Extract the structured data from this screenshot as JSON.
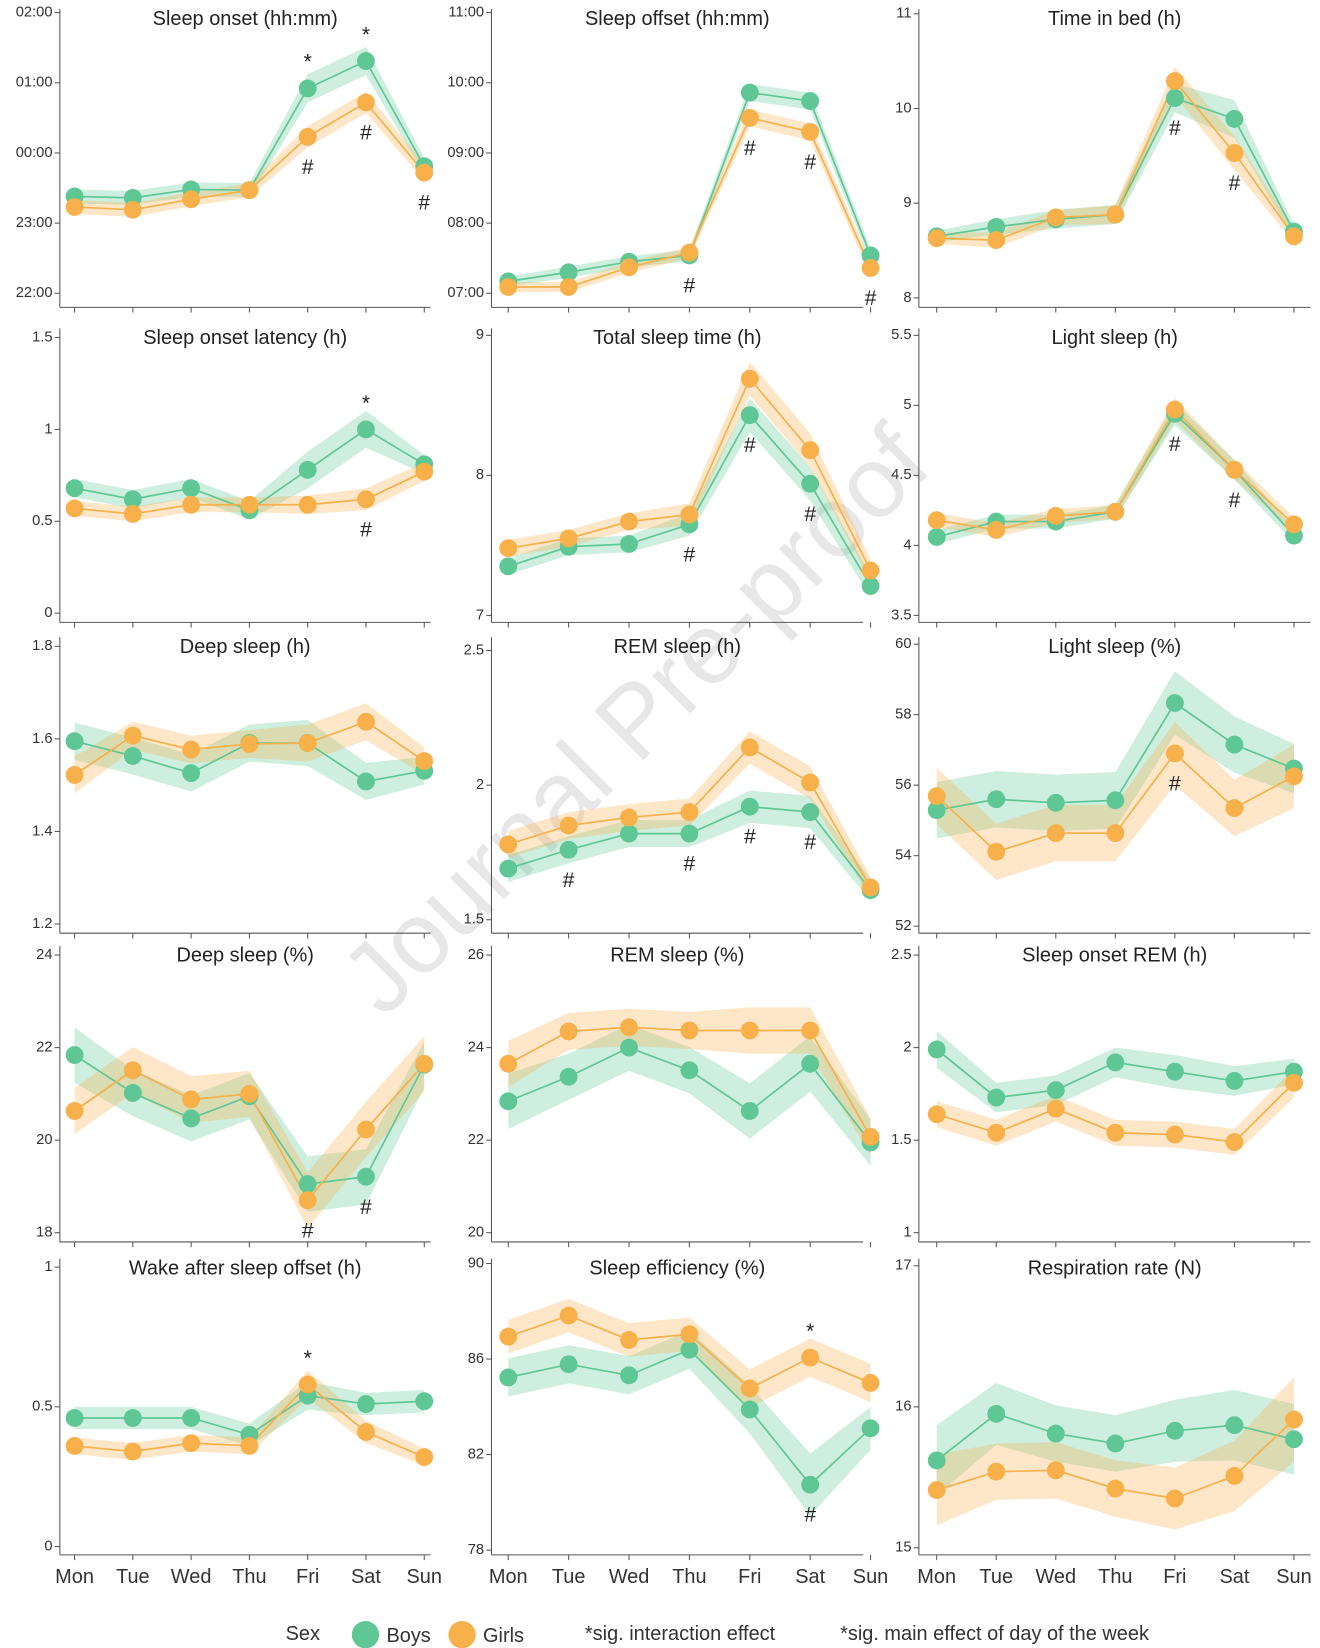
{
  "categories": [
    "Mon",
    "Tue",
    "Wed",
    "Thu",
    "Fri",
    "Sat",
    "Sun"
  ],
  "watermark": "Journal Pre-proof",
  "legend": {
    "title": "Sex",
    "notes": [
      "*sig. interaction effect",
      "*sig. main effect of day of the week"
    ]
  },
  "chart_data": [
    {
      "type": "line",
      "title": "Sleep onset (hh:mm)",
      "ylim": [
        21.8,
        26.05
      ],
      "yticks": [
        {
          "value": 22,
          "label": "22:00"
        },
        {
          "value": 23,
          "label": "23:00"
        },
        {
          "value": 24,
          "label": "00:00"
        },
        {
          "value": 25,
          "label": "01:00"
        },
        {
          "value": 26,
          "label": "02:00"
        }
      ],
      "series": [
        {
          "name": "Boys",
          "color": "#5ec795",
          "values": [
            23.38,
            23.36,
            23.48,
            23.47,
            24.92,
            25.31,
            23.81
          ],
          "errors": [
            0.1,
            0.1,
            0.1,
            0.1,
            0.2,
            0.2,
            0.12
          ]
        },
        {
          "name": "Girls",
          "color": "#f7b04a",
          "values": [
            23.23,
            23.19,
            23.34,
            23.47,
            24.23,
            24.72,
            23.72
          ],
          "errors": [
            0.1,
            0.1,
            0.1,
            0.1,
            0.15,
            0.15,
            0.12
          ]
        }
      ],
      "annotations": [
        {
          "text": "*",
          "category": "Fri"
        },
        {
          "text": "*",
          "category": "Sat"
        },
        {
          "text": "#",
          "category": "Fri"
        },
        {
          "text": "#",
          "category": "Sat"
        },
        {
          "text": "#",
          "category": "Sun"
        }
      ]
    },
    {
      "type": "line",
      "title": "Sleep offset (hh:mm)",
      "ylim": [
        6.8,
        11.05
      ],
      "yticks": [
        {
          "value": 7,
          "label": "07:00"
        },
        {
          "value": 8,
          "label": "08:00"
        },
        {
          "value": 9,
          "label": "09:00"
        },
        {
          "value": 10,
          "label": "10:00"
        },
        {
          "value": 11,
          "label": "11:00"
        }
      ],
      "series": [
        {
          "name": "Boys",
          "color": "#5ec795",
          "values": [
            7.17,
            7.3,
            7.45,
            7.54,
            9.86,
            9.74,
            7.54
          ],
          "errors": [
            0.07,
            0.08,
            0.08,
            0.08,
            0.12,
            0.12,
            0.1
          ]
        },
        {
          "name": "Girls",
          "color": "#f7b04a",
          "values": [
            7.09,
            7.09,
            7.37,
            7.58,
            9.5,
            9.3,
            7.36
          ],
          "errors": [
            0.07,
            0.07,
            0.08,
            0.08,
            0.12,
            0.12,
            0.1
          ]
        }
      ],
      "annotations": [
        {
          "text": "#",
          "category": "Thu"
        },
        {
          "text": "#",
          "category": "Fri"
        },
        {
          "text": "#",
          "category": "Sat"
        },
        {
          "text": "#",
          "category": "Sun"
        }
      ]
    },
    {
      "type": "line",
      "title": "Time in bed (h)",
      "ylim": [
        7.9,
        11.05
      ],
      "yticks": [
        8,
        9,
        10,
        11
      ],
      "series": [
        {
          "name": "Boys",
          "color": "#5ec795",
          "values": [
            8.65,
            8.75,
            8.83,
            8.88,
            10.11,
            9.89,
            8.7
          ],
          "errors": [
            0.06,
            0.08,
            0.1,
            0.1,
            0.15,
            0.2,
            0.07
          ]
        },
        {
          "name": "Girls",
          "color": "#f7b04a",
          "values": [
            8.63,
            8.61,
            8.85,
            8.88,
            10.29,
            9.53,
            8.65
          ],
          "errors": [
            0.06,
            0.08,
            0.08,
            0.1,
            0.15,
            0.18,
            0.07
          ]
        }
      ],
      "annotations": [
        {
          "text": "#",
          "category": "Fri"
        },
        {
          "text": "#",
          "category": "Sat"
        }
      ]
    },
    {
      "type": "line",
      "title": "Sleep onset latency (h)",
      "ylim": [
        -0.05,
        1.55
      ],
      "yticks": [
        0,
        0.5,
        1,
        1.5
      ],
      "series": [
        {
          "name": "Boys",
          "color": "#5ec795",
          "values": [
            0.68,
            0.62,
            0.68,
            0.56,
            0.78,
            1.0,
            0.81
          ],
          "errors": [
            0.05,
            0.05,
            0.05,
            0.05,
            0.1,
            0.1,
            0.05
          ]
        },
        {
          "name": "Girls",
          "color": "#f7b04a",
          "values": [
            0.57,
            0.54,
            0.59,
            0.59,
            0.59,
            0.62,
            0.77
          ],
          "errors": [
            0.04,
            0.04,
            0.04,
            0.04,
            0.05,
            0.06,
            0.05
          ]
        }
      ],
      "annotations": [
        {
          "text": "*",
          "category": "Sat"
        },
        {
          "text": "#",
          "category": "Sat"
        }
      ]
    },
    {
      "type": "line",
      "title": "Total sleep time (h)",
      "ylim": [
        6.95,
        9.05
      ],
      "yticks": [
        7,
        8,
        9
      ],
      "series": [
        {
          "name": "Boys",
          "color": "#5ec795",
          "values": [
            7.35,
            7.49,
            7.51,
            7.65,
            8.43,
            7.94,
            7.21
          ],
          "errors": [
            0.06,
            0.06,
            0.06,
            0.08,
            0.12,
            0.12,
            0.08
          ]
        },
        {
          "name": "Girls",
          "color": "#f7b04a",
          "values": [
            7.48,
            7.55,
            7.67,
            7.72,
            8.69,
            8.18,
            7.32
          ],
          "errors": [
            0.06,
            0.06,
            0.06,
            0.08,
            0.12,
            0.12,
            0.08
          ]
        }
      ],
      "annotations": [
        {
          "text": "#",
          "category": "Thu"
        },
        {
          "text": "#",
          "category": "Fri"
        },
        {
          "text": "#",
          "category": "Sat"
        }
      ]
    },
    {
      "type": "line",
      "title": "Light sleep (h)",
      "ylim": [
        3.45,
        5.55
      ],
      "yticks": [
        3.5,
        4,
        4.5,
        5,
        5.5
      ],
      "series": [
        {
          "name": "Boys",
          "color": "#5ec795",
          "values": [
            4.06,
            4.17,
            4.17,
            4.24,
            4.94,
            4.54,
            4.07
          ],
          "errors": [
            0.05,
            0.05,
            0.05,
            0.05,
            0.08,
            0.07,
            0.05
          ]
        },
        {
          "name": "Girls",
          "color": "#f7b04a",
          "values": [
            4.18,
            4.11,
            4.21,
            4.24,
            4.97,
            4.54,
            4.15
          ],
          "errors": [
            0.05,
            0.05,
            0.05,
            0.05,
            0.08,
            0.07,
            0.05
          ]
        }
      ],
      "annotations": [
        {
          "text": "#",
          "category": "Fri"
        },
        {
          "text": "#",
          "category": "Sat"
        }
      ]
    },
    {
      "type": "line",
      "title": "Deep sleep (h)",
      "ylim": [
        1.18,
        1.82
      ],
      "yticks": [
        1.2,
        1.4,
        1.6,
        1.8
      ],
      "series": [
        {
          "name": "Boys",
          "color": "#5ec795",
          "values": [
            1.595,
            1.563,
            1.526,
            1.591,
            1.591,
            1.508,
            1.531
          ],
          "errors": [
            0.04,
            0.04,
            0.04,
            0.04,
            0.05,
            0.04,
            0.03
          ]
        },
        {
          "name": "Girls",
          "color": "#f7b04a",
          "values": [
            1.522,
            1.607,
            1.577,
            1.589,
            1.591,
            1.637,
            1.552
          ],
          "errors": [
            0.04,
            0.03,
            0.03,
            0.03,
            0.04,
            0.04,
            0.03
          ]
        }
      ],
      "annotations": []
    },
    {
      "type": "line",
      "title": "REM sleep (h)",
      "ylim": [
        1.45,
        2.55
      ],
      "yticks": [
        1.5,
        2,
        2.5
      ],
      "series": [
        {
          "name": "Boys",
          "color": "#5ec795",
          "values": [
            1.69,
            1.76,
            1.82,
            1.82,
            1.92,
            1.9,
            1.61
          ],
          "errors": [
            0.05,
            0.05,
            0.05,
            0.05,
            0.06,
            0.06,
            0.04
          ]
        },
        {
          "name": "Girls",
          "color": "#f7b04a",
          "values": [
            1.78,
            1.85,
            1.88,
            1.9,
            2.14,
            2.01,
            1.62
          ],
          "errors": [
            0.05,
            0.05,
            0.05,
            0.05,
            0.06,
            0.06,
            0.04
          ]
        }
      ],
      "annotations": [
        {
          "text": "#",
          "category": "Tue"
        },
        {
          "text": "#",
          "category": "Thu"
        },
        {
          "text": "#",
          "category": "Fri"
        },
        {
          "text": "#",
          "category": "Sat"
        }
      ]
    },
    {
      "type": "line",
      "title": "Light sleep (%)",
      "ylim": [
        51.8,
        60.2
      ],
      "yticks": [
        52,
        54,
        56,
        58,
        60
      ],
      "series": [
        {
          "name": "Boys",
          "color": "#5ec795",
          "values": [
            55.29,
            55.6,
            55.5,
            55.57,
            58.33,
            57.15,
            56.47
          ],
          "errors": [
            0.8,
            0.8,
            0.8,
            0.8,
            0.9,
            0.8,
            0.7
          ]
        },
        {
          "name": "Girls",
          "color": "#f7b04a",
          "values": [
            55.69,
            54.11,
            54.64,
            54.64,
            56.9,
            55.35,
            56.25
          ],
          "errors": [
            0.8,
            0.8,
            0.8,
            0.8,
            0.9,
            0.8,
            0.9
          ]
        }
      ],
      "annotations": [
        {
          "text": "#",
          "category": "Fri"
        }
      ]
    },
    {
      "type": "line",
      "title": "Deep sleep (%)",
      "ylim": [
        17.8,
        24.2
      ],
      "yticks": [
        18,
        20,
        22,
        24
      ],
      "series": [
        {
          "name": "Boys",
          "color": "#5ec795",
          "values": [
            21.84,
            21.02,
            20.47,
            20.95,
            19.05,
            19.21,
            21.63
          ],
          "errors": [
            0.6,
            0.5,
            0.5,
            0.5,
            0.6,
            0.6,
            0.5
          ]
        },
        {
          "name": "Girls",
          "color": "#f7b04a",
          "values": [
            20.63,
            21.51,
            20.88,
            21.0,
            18.7,
            20.23,
            21.65
          ],
          "errors": [
            0.5,
            0.5,
            0.5,
            0.5,
            0.6,
            0.6,
            0.6
          ]
        }
      ],
      "annotations": [
        {
          "text": "#",
          "category": "Fri"
        },
        {
          "text": "#",
          "category": "Sat"
        }
      ]
    },
    {
      "type": "line",
      "title": "REM sleep (%)",
      "ylim": [
        19.8,
        26.2
      ],
      "yticks": [
        20,
        22,
        24,
        26
      ],
      "series": [
        {
          "name": "Boys",
          "color": "#5ec795",
          "values": [
            22.84,
            23.37,
            24.0,
            23.51,
            22.63,
            23.65,
            21.95
          ],
          "errors": [
            0.6,
            0.5,
            0.5,
            0.5,
            0.6,
            0.6,
            0.5
          ]
        },
        {
          "name": "Girls",
          "color": "#f7b04a",
          "values": [
            23.65,
            24.35,
            24.44,
            24.37,
            24.37,
            24.37,
            22.07
          ],
          "errors": [
            0.5,
            0.4,
            0.4,
            0.4,
            0.5,
            0.5,
            0.4
          ]
        }
      ],
      "annotations": []
    },
    {
      "type": "line",
      "title": "Sleep onset REM (h)",
      "ylim": [
        0.95,
        2.55
      ],
      "yticks": [
        1,
        1.5,
        2,
        2.5
      ],
      "series": [
        {
          "name": "Boys",
          "color": "#5ec795",
          "values": [
            1.99,
            1.73,
            1.77,
            1.92,
            1.87,
            1.82,
            1.87
          ],
          "errors": [
            0.1,
            0.08,
            0.08,
            0.08,
            0.09,
            0.08,
            0.07
          ]
        },
        {
          "name": "Girls",
          "color": "#f7b04a",
          "values": [
            1.64,
            1.54,
            1.67,
            1.54,
            1.53,
            1.49,
            1.81
          ],
          "errors": [
            0.07,
            0.07,
            0.07,
            0.07,
            0.07,
            0.07,
            0.08
          ]
        }
      ],
      "annotations": []
    },
    {
      "type": "line",
      "title": "Wake after sleep offset (h)",
      "ylim": [
        -0.03,
        1.03
      ],
      "yticks": [
        0,
        0.5,
        1
      ],
      "series": [
        {
          "name": "Boys",
          "color": "#5ec795",
          "values": [
            0.46,
            0.46,
            0.46,
            0.4,
            0.54,
            0.51,
            0.52
          ],
          "errors": [
            0.04,
            0.04,
            0.04,
            0.04,
            0.05,
            0.04,
            0.04
          ]
        },
        {
          "name": "Girls",
          "color": "#f7b04a",
          "values": [
            0.36,
            0.34,
            0.37,
            0.36,
            0.58,
            0.41,
            0.32
          ],
          "errors": [
            0.03,
            0.03,
            0.03,
            0.03,
            0.05,
            0.04,
            0.03
          ]
        }
      ],
      "annotations": [
        {
          "text": "*",
          "category": "Fri"
        }
      ]
    },
    {
      "type": "line",
      "title": "Sleep efficiency (%)",
      "ylim": [
        77.8,
        90.2
      ],
      "yticks": [
        78,
        82,
        86,
        90
      ],
      "series": [
        {
          "name": "Boys",
          "color": "#5ec795",
          "values": [
            85.23,
            85.78,
            85.32,
            86.39,
            83.89,
            80.74,
            83.1
          ],
          "errors": [
            0.8,
            0.8,
            0.8,
            0.8,
            1.0,
            1.3,
            0.9
          ]
        },
        {
          "name": "Girls",
          "color": "#f7b04a",
          "values": [
            86.94,
            87.82,
            86.8,
            87.04,
            84.77,
            86.06,
            85.0
          ],
          "errors": [
            0.7,
            0.7,
            0.7,
            0.7,
            0.8,
            0.8,
            0.8
          ]
        }
      ],
      "annotations": [
        {
          "text": "*",
          "category": "Sat"
        },
        {
          "text": "#",
          "category": "Sat"
        }
      ]
    },
    {
      "type": "line",
      "title": "Respiration rate (N)",
      "ylim": [
        14.95,
        17.05
      ],
      "yticks": [
        15,
        16,
        17
      ],
      "series": [
        {
          "name": "Boys",
          "color": "#5ec795",
          "values": [
            15.62,
            15.95,
            15.81,
            15.74,
            15.83,
            15.87,
            15.77
          ],
          "errors": [
            0.25,
            0.22,
            0.2,
            0.2,
            0.22,
            0.25,
            0.25
          ]
        },
        {
          "name": "Girls",
          "color": "#f7b04a",
          "values": [
            15.41,
            15.54,
            15.55,
            15.42,
            15.35,
            15.51,
            15.91
          ],
          "errors": [
            0.25,
            0.2,
            0.2,
            0.2,
            0.22,
            0.25,
            0.3
          ]
        }
      ],
      "annotations": []
    }
  ]
}
